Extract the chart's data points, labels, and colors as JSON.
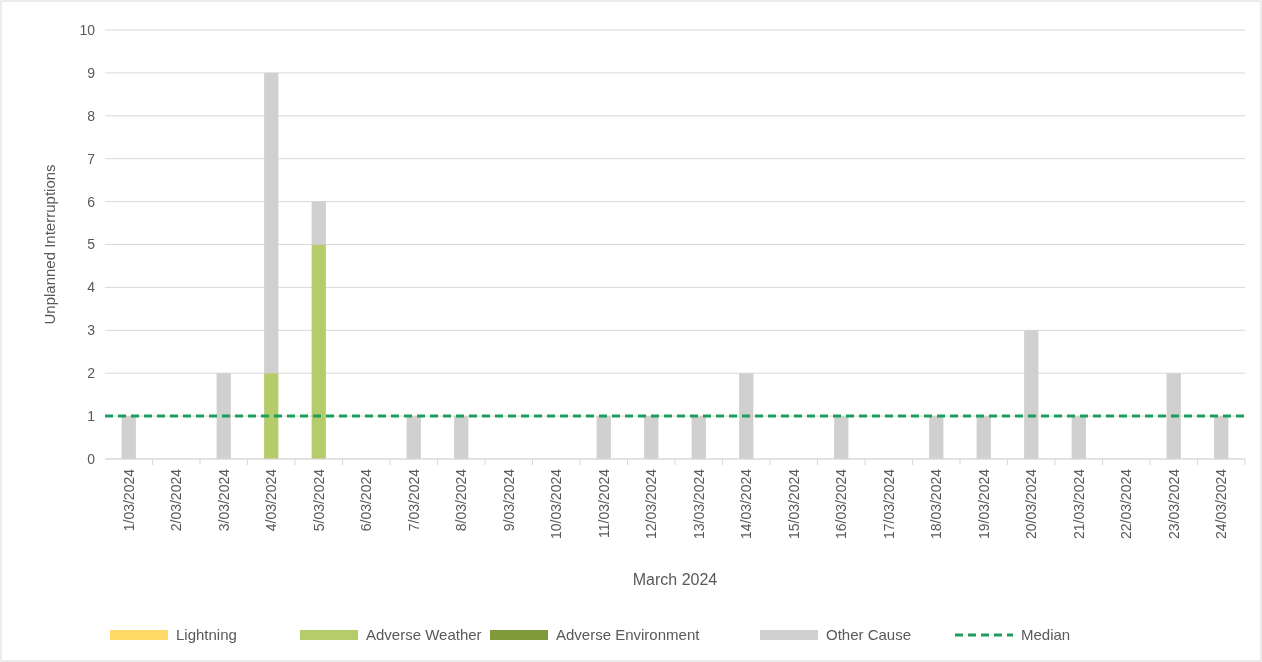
{
  "chart_data": {
    "type": "bar",
    "stacked": true,
    "xlabel": "March 2024",
    "ylabel": "Unplanned Interruptions",
    "categories": [
      "1/03/2024",
      "2/03/2024",
      "3/03/2024",
      "4/03/2024",
      "5/03/2024",
      "6/03/2024",
      "7/03/2024",
      "8/03/2024",
      "9/03/2024",
      "10/03/2024",
      "11/03/2024",
      "12/03/2024",
      "13/03/2024",
      "14/03/2024",
      "15/03/2024",
      "16/03/2024",
      "17/03/2024",
      "18/03/2024",
      "19/03/2024",
      "20/03/2024",
      "21/03/2024",
      "22/03/2024",
      "23/03/2024",
      "24/03/2024"
    ],
    "series": [
      {
        "name": "Lightning",
        "color": "#ffd966",
        "values": [
          0,
          0,
          0,
          0,
          0,
          0,
          0,
          0,
          0,
          0,
          0,
          0,
          0,
          0,
          0,
          0,
          0,
          0,
          0,
          0,
          0,
          0,
          0,
          0
        ]
      },
      {
        "name": "Adverse Weather",
        "color": "#b5cc6a",
        "values": [
          0,
          0,
          0,
          2,
          5,
          0,
          0,
          0,
          0,
          0,
          0,
          0,
          0,
          0,
          0,
          0,
          0,
          0,
          0,
          0,
          0,
          0,
          0,
          0
        ]
      },
      {
        "name": "Adverse Environment",
        "color": "#7f9a3a",
        "values": [
          0,
          0,
          0,
          0,
          0,
          0,
          0,
          0,
          0,
          0,
          0,
          0,
          0,
          0,
          0,
          0,
          0,
          0,
          0,
          0,
          0,
          0,
          0,
          0
        ]
      },
      {
        "name": "Other Cause",
        "color": "#d0d0d0",
        "values": [
          1,
          0,
          2,
          7,
          1,
          0,
          1,
          1,
          0,
          0,
          1,
          1,
          1,
          2,
          0,
          1,
          0,
          1,
          1,
          3,
          1,
          0,
          2,
          1
        ]
      }
    ],
    "ref_lines": [
      {
        "axis": "y",
        "value": 1,
        "label": "Median",
        "color": "#1e9e5e",
        "line_style": "dashed"
      }
    ],
    "ylim": [
      0,
      10
    ],
    "yticks": [
      0,
      1,
      2,
      3,
      4,
      5,
      6,
      7,
      8,
      9,
      10
    ],
    "grid": "y",
    "legend": "bottom"
  }
}
